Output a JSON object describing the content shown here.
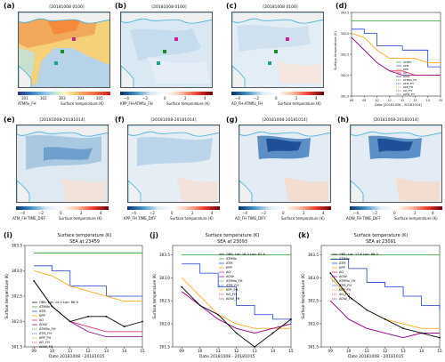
{
  "panels_top": [
    {
      "tag": "(a)",
      "title": "[20181008 0100]",
      "cb_left": "ATMfix_FH",
      "cb_right": "Surface temperature (K)",
      "ticks": [
        "301",
        "302",
        "303",
        "304",
        "305"
      ],
      "style": "abs"
    },
    {
      "tag": "(b)",
      "title": "[20181008 0100]",
      "cb_left": "KPP_FH-ATMfix_FH",
      "cb_right": "Surface temperature (K)",
      "ticks": [
        "−4",
        "−2",
        "0",
        "2",
        "4"
      ],
      "style": "diff"
    },
    {
      "tag": "(c)",
      "title": "[20181008 0100]",
      "cb_left": "AO_FH-ATMfix_FH",
      "cb_right": "Surface temperature (K)",
      "ticks": [
        "−4",
        "−2",
        "0",
        "2",
        "4"
      ],
      "style": "diff2"
    }
  ],
  "panels_mid": [
    {
      "tag": "(e)",
      "title": "[20181008-20181014]",
      "cb_left": "ATM_FH TIME_DIFF",
      "cb_right": "Surface temperature (K)",
      "ticks": [
        "−4",
        "−2",
        "0",
        "2",
        "4"
      ]
    },
    {
      "tag": "(f)",
      "title": "[20181008-20181014]",
      "cb_left": "KPP_FH TIME_DIFF",
      "cb_right": "Surface temperature (K)",
      "ticks": [
        "−4",
        "−2",
        "0",
        "2",
        "4"
      ]
    },
    {
      "tag": "(g)",
      "title": "[20181008-20181014]",
      "cb_left": "AO_FH TIME_DIFF",
      "cb_right": "Surface temperature (K)",
      "ticks": [
        "−4",
        "−2",
        "0",
        "2",
        "4"
      ]
    },
    {
      "tag": "(h)",
      "title": "[20181008-20181014]",
      "cb_left": "AOW_FH TIME_DIFF",
      "cb_right": "Surface temperature (K)",
      "ticks": [
        "−4",
        "−2",
        "0",
        "2",
        "4"
      ]
    }
  ],
  "panel_d": {
    "tag": "(d)",
    "ylabel": "Surface temperature (K)",
    "xlabel": "Date [20181008 - 20181014]"
  },
  "panels_bottom": [
    {
      "tag": "(i)",
      "title1": "Surface temperature (K)",
      "title2": "SEA at 23459",
      "xlabel": "Date 20181008 - 20181015",
      "ylabel": "Surface temperature (K)\nSEA",
      "obs": "OBS; Lat: 14.0 Lon: 86.9"
    },
    {
      "tag": "(j)",
      "title1": "Surface temperature (K)",
      "title2": "SEA at 23093",
      "xlabel": "Date 20181008 - 20181015",
      "ylabel": "Surface temperature (K)\nSEA",
      "obs": "OBS; Lat: 18.3 Lon: 87.5"
    },
    {
      "tag": "(k)",
      "title1": "Surface temperature (K)",
      "title2": "SEA at 23091",
      "xlabel": "Date 20181008 - 20181015",
      "ylabel": "Surface temperature (K)\nSEA",
      "obs": "OBS; Lat: 17.6 Lon: 88.3"
    }
  ],
  "legend_entries": [
    "ATMfix",
    "ATM",
    "KPP",
    "AO",
    "AOW",
    "ATMfix_FH",
    "ATM_FH",
    "KPP_FH",
    "AO_FH",
    "AOW_FH"
  ],
  "series_colors": {
    "obs": "#000000",
    "ATMfix": "#2ca02c",
    "ATM": "#1f3fd6",
    "KPP": "#ff9f00",
    "AO": "#e0115f",
    "AOW": "#8b008b"
  },
  "chart_data": [
    {
      "type": "line",
      "panel": "(d)",
      "x": [
        8,
        9,
        10,
        11,
        12,
        13,
        14,
        15
      ],
      "xlim": [
        8,
        15
      ],
      "ylim": [
        301.5,
        303.5
      ],
      "series": [
        {
          "name": "ATMfix",
          "values": [
            303.3,
            303.3,
            303.3,
            303.3,
            303.3,
            303.3,
            303.3,
            303.3
          ]
        },
        {
          "name": "ATM",
          "values": [
            303.1,
            303.0,
            302.7,
            302.7,
            302.6,
            302.6,
            302.2,
            302.2
          ]
        },
        {
          "name": "KPP",
          "values": [
            303.0,
            302.9,
            302.6,
            302.4,
            302.4,
            302.4,
            302.3,
            302.3
          ]
        },
        {
          "name": "AO",
          "values": [
            302.9,
            302.6,
            302.3,
            302.1,
            302.1,
            302.0,
            302.0,
            302.0
          ]
        },
        {
          "name": "AOW",
          "values": [
            302.9,
            302.6,
            302.3,
            302.1,
            302.0,
            302.0,
            302.0,
            302.0
          ]
        }
      ]
    },
    {
      "type": "line",
      "panel": "(i)",
      "x": [
        9,
        10,
        11,
        12,
        13,
        14,
        15
      ],
      "xlim": [
        8.5,
        15
      ],
      "ylim": [
        301.5,
        303.5
      ],
      "series": [
        {
          "name": "ATMfix",
          "values": [
            303.35,
            303.35,
            303.35,
            303.35,
            303.35,
            303.35,
            303.35
          ]
        },
        {
          "name": "ATM",
          "values": [
            303.1,
            303.0,
            302.7,
            302.7,
            302.5,
            302.5,
            302.5
          ]
        },
        {
          "name": "KPP",
          "values": [
            303.0,
            302.9,
            302.7,
            302.6,
            302.5,
            302.4,
            302.4
          ]
        },
        {
          "name": "AO",
          "values": [
            302.8,
            302.3,
            302.0,
            301.9,
            301.8,
            301.8,
            301.8
          ]
        },
        {
          "name": "AOW",
          "values": [
            302.8,
            302.3,
            302.0,
            301.8,
            301.7,
            301.7,
            301.7
          ]
        },
        {
          "name": "OBS",
          "values": [
            302.8,
            302.3,
            302.0,
            302.1,
            302.1,
            301.9,
            302.0
          ]
        }
      ]
    },
    {
      "type": "line",
      "panel": "(j)",
      "x": [
        9,
        10,
        11,
        12,
        13,
        14,
        15
      ],
      "xlim": [
        8.5,
        15
      ],
      "ylim": [
        301.5,
        303.7
      ],
      "series": [
        {
          "name": "ATMfix",
          "values": [
            303.5,
            303.5,
            303.5,
            303.5,
            303.5,
            303.5,
            303.5
          ]
        },
        {
          "name": "ATM",
          "values": [
            303.3,
            303.1,
            302.8,
            302.4,
            302.2,
            302.1,
            302.0
          ]
        },
        {
          "name": "KPP",
          "values": [
            303.0,
            302.6,
            302.2,
            302.0,
            301.9,
            301.9,
            301.9
          ]
        },
        {
          "name": "AO",
          "values": [
            302.7,
            302.4,
            302.1,
            301.9,
            301.8,
            301.9,
            302.0
          ]
        },
        {
          "name": "AOW",
          "values": [
            302.7,
            302.4,
            302.1,
            301.9,
            301.8,
            301.9,
            302.0
          ]
        },
        {
          "name": "OBS",
          "values": [
            302.8,
            302.4,
            302.2,
            301.8,
            301.5,
            301.8,
            302.1
          ]
        }
      ]
    },
    {
      "type": "line",
      "panel": "(k)",
      "x": [
        9,
        10,
        11,
        12,
        13,
        14,
        15
      ],
      "xlim": [
        8.5,
        15
      ],
      "ylim": [
        301.5,
        303.7
      ],
      "series": [
        {
          "name": "ATMfix",
          "values": [
            303.5,
            303.5,
            303.5,
            303.5,
            303.5,
            303.5,
            303.5
          ]
        },
        {
          "name": "ATM",
          "values": [
            303.4,
            303.2,
            302.9,
            302.8,
            302.6,
            302.4,
            302.3
          ]
        },
        {
          "name": "KPP",
          "values": [
            303.0,
            302.6,
            302.3,
            302.1,
            302.0,
            301.9,
            301.9
          ]
        },
        {
          "name": "AO",
          "values": [
            302.5,
            302.1,
            301.9,
            301.8,
            301.7,
            301.8,
            301.8
          ]
        },
        {
          "name": "AOW",
          "values": [
            302.5,
            302.1,
            301.9,
            301.8,
            301.7,
            301.8,
            301.8
          ]
        },
        {
          "name": "OBS",
          "values": [
            303.1,
            302.6,
            302.3,
            302.1,
            301.9,
            301.8,
            301.7
          ]
        }
      ]
    }
  ]
}
